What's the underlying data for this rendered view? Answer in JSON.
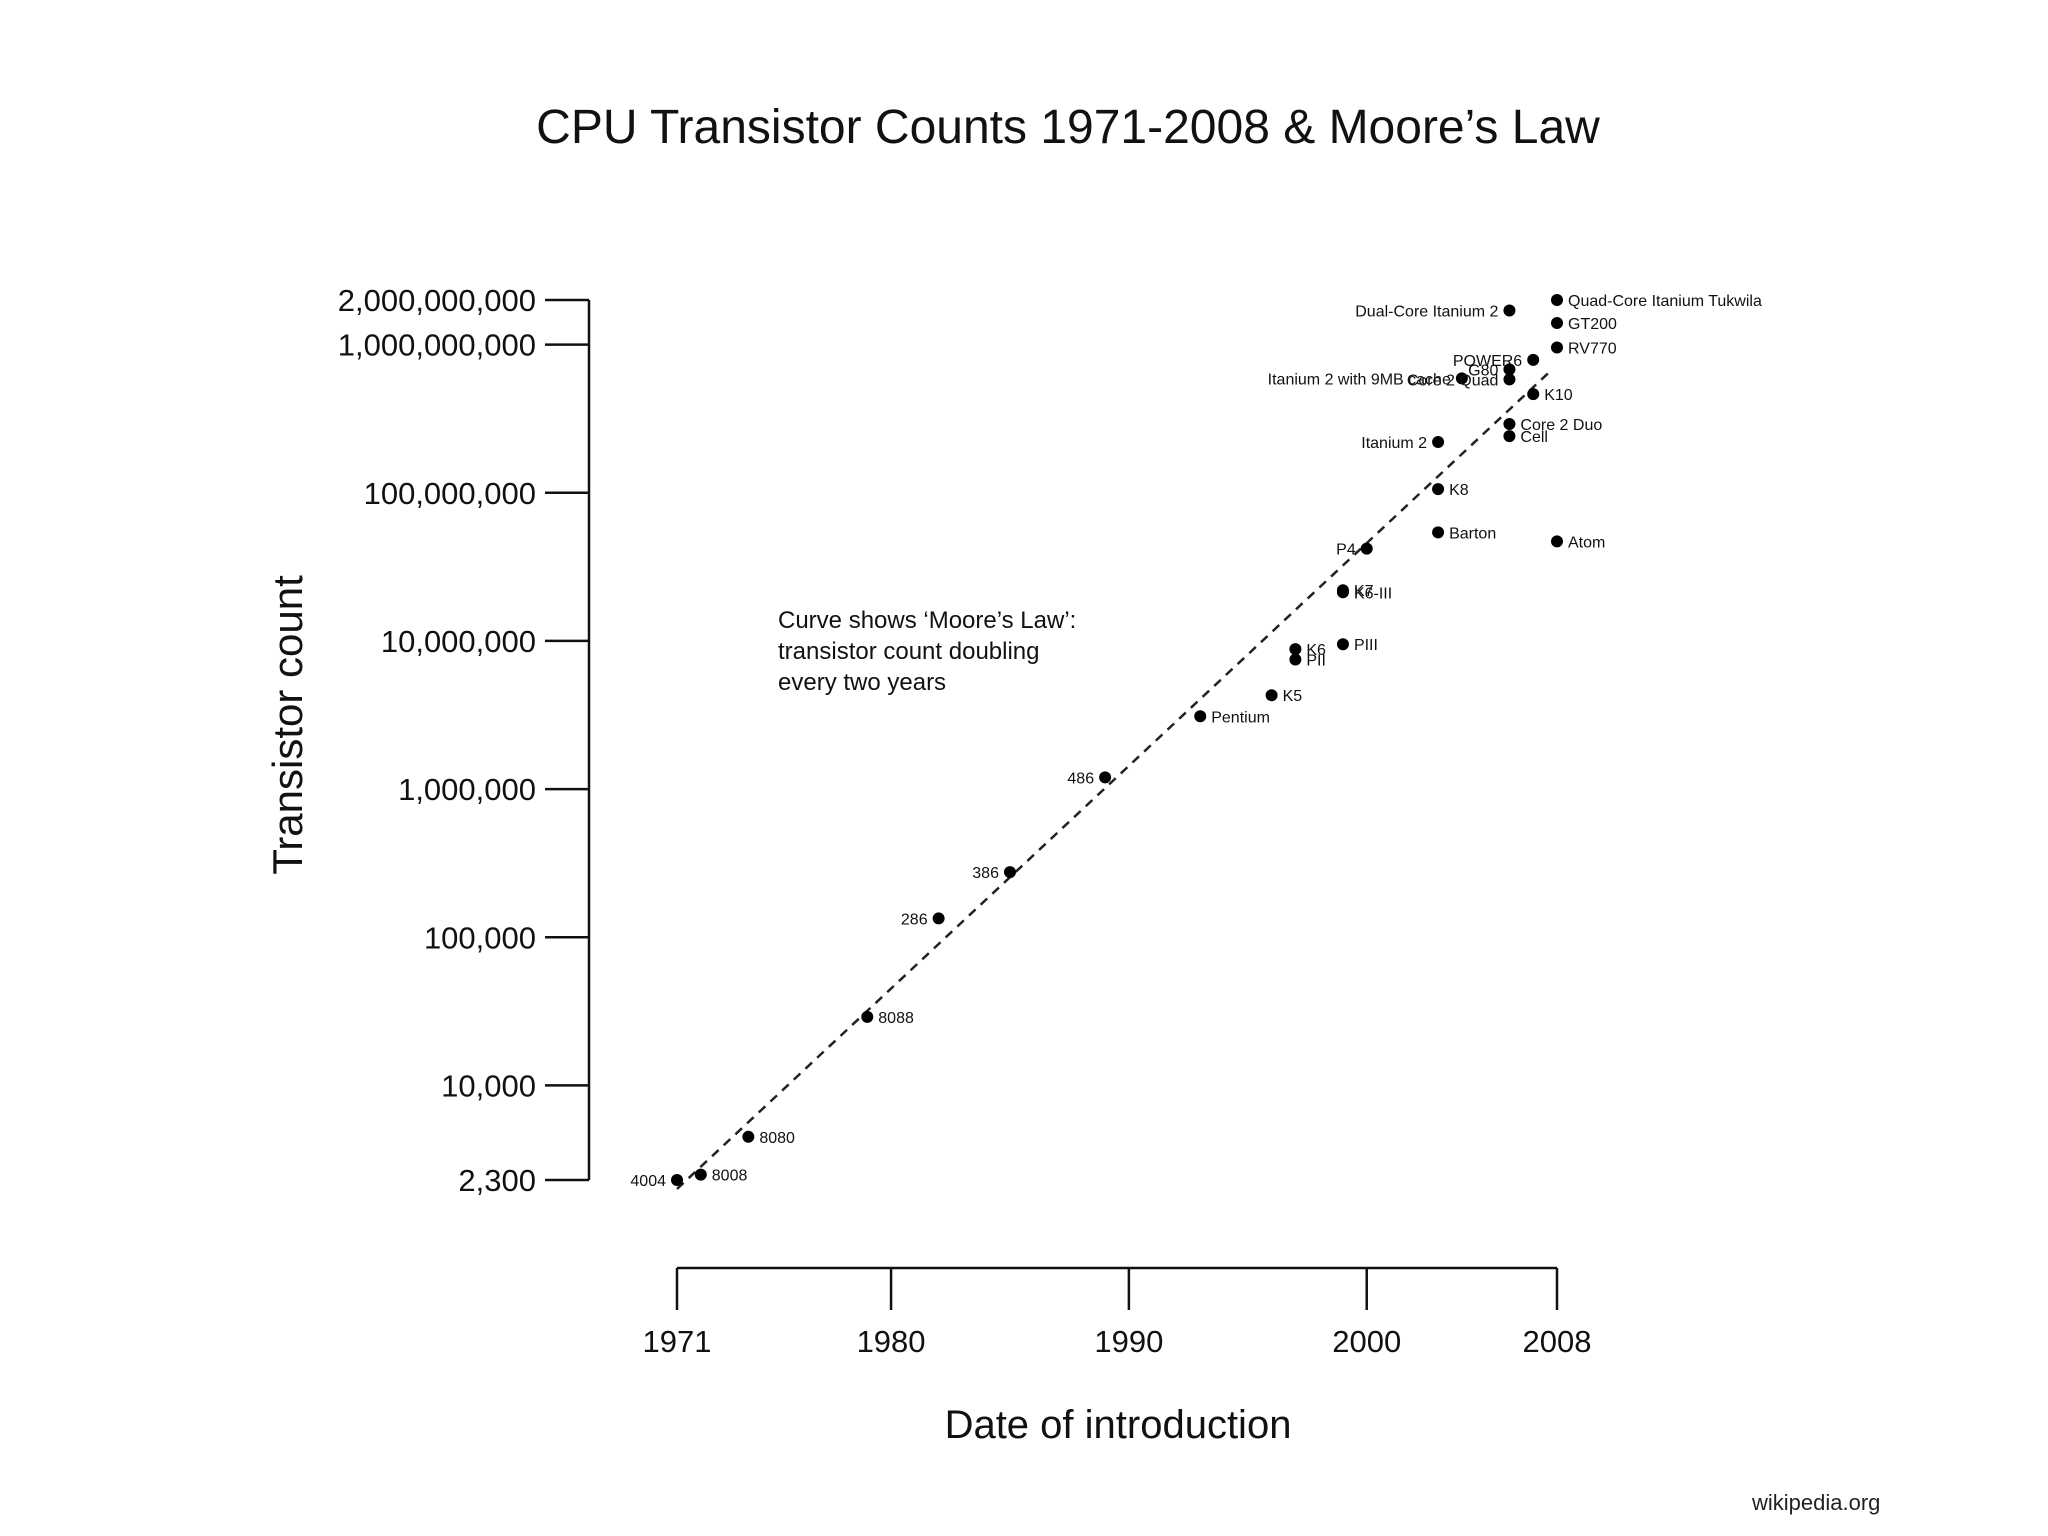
{
  "chart_data": {
    "type": "scatter",
    "title": "CPU Transistor Counts 1971-2008 & Moore’s Law",
    "xlabel": "Date of introduction",
    "ylabel": "Transistor count",
    "xlim": [
      1971,
      2008
    ],
    "ylim": [
      2300,
      2000000000
    ],
    "yscale": "log",
    "x_ticks": [
      {
        "value": 1971,
        "label": "1971"
      },
      {
        "value": 1980,
        "label": "1980"
      },
      {
        "value": 1990,
        "label": "1990"
      },
      {
        "value": 2000,
        "label": "2000"
      },
      {
        "value": 2008,
        "label": "2008"
      }
    ],
    "y_ticks": [
      {
        "value": 2000000000,
        "label": "2,000,000,000"
      },
      {
        "value": 1000000000,
        "label": "1,000,000,000"
      },
      {
        "value": 100000000,
        "label": "100,000,000"
      },
      {
        "value": 10000000,
        "label": "10,000,000"
      },
      {
        "value": 1000000,
        "label": "1,000,000"
      },
      {
        "value": 100000,
        "label": "100,000"
      },
      {
        "value": 10000,
        "label": "10,000"
      },
      {
        "value": 2300,
        "label": "2,300"
      }
    ],
    "trend_line": {
      "label": "Moore’s Law",
      "style": "dashed",
      "from": {
        "x": 1971,
        "y": 2000
      },
      "to": {
        "x": 2007.8,
        "y": 680000000
      }
    },
    "annotation": [
      "Curve shows ‘Moore’s Law’:",
      "transistor count doubling",
      "every two years"
    ],
    "points": [
      {
        "name": "4004",
        "x": 1971,
        "y": 2300,
        "label_side": "left"
      },
      {
        "name": "8008",
        "x": 1972,
        "y": 2500,
        "label_side": "right"
      },
      {
        "name": "8080",
        "x": 1974,
        "y": 4500,
        "label_side": "right"
      },
      {
        "name": "8088",
        "x": 1979,
        "y": 29000,
        "label_side": "right"
      },
      {
        "name": "286",
        "x": 1982,
        "y": 134000,
        "label_side": "left"
      },
      {
        "name": "386",
        "x": 1985,
        "y": 275000,
        "label_side": "left"
      },
      {
        "name": "486",
        "x": 1989,
        "y": 1200000,
        "label_side": "left"
      },
      {
        "name": "Pentium",
        "x": 1993,
        "y": 3100000,
        "label_side": "right"
      },
      {
        "name": "K5",
        "x": 1996,
        "y": 4300000,
        "label_side": "right"
      },
      {
        "name": "K6",
        "x": 1997,
        "y": 8800000,
        "label_side": "right"
      },
      {
        "name": "PII",
        "x": 1997,
        "y": 7500000,
        "label_side": "right"
      },
      {
        "name": "PIII",
        "x": 1999,
        "y": 9500000,
        "label_side": "right"
      },
      {
        "name": "K7",
        "x": 1999,
        "y": 22000000,
        "label_side": "right"
      },
      {
        "name": "K6-III",
        "x": 1999,
        "y": 21300000,
        "label_side": "right"
      },
      {
        "name": "P4",
        "x": 2000,
        "y": 42000000,
        "label_side": "left"
      },
      {
        "name": "Barton",
        "x": 2003,
        "y": 54000000,
        "label_side": "right"
      },
      {
        "name": "K8",
        "x": 2003,
        "y": 105900000,
        "label_side": "right"
      },
      {
        "name": "Itanium 2",
        "x": 2003,
        "y": 220000000,
        "label_side": "left"
      },
      {
        "name": "Itanium 2 with 9MB cache",
        "x": 2004,
        "y": 592000000,
        "label_side": "left"
      },
      {
        "name": "Cell",
        "x": 2006,
        "y": 241000000,
        "label_side": "right"
      },
      {
        "name": "Core 2 Duo",
        "x": 2006,
        "y": 291000000,
        "label_side": "right"
      },
      {
        "name": "Core 2 Quad",
        "x": 2006,
        "y": 582000000,
        "label_side": "left"
      },
      {
        "name": "G80",
        "x": 2006,
        "y": 681000000,
        "label_side": "left"
      },
      {
        "name": "Dual-Core Itanium 2",
        "x": 2006,
        "y": 1700000000,
        "label_side": "left"
      },
      {
        "name": "POWER6",
        "x": 2007,
        "y": 789000000,
        "label_side": "left"
      },
      {
        "name": "K10",
        "x": 2007,
        "y": 463000000,
        "label_side": "right"
      },
      {
        "name": "Atom",
        "x": 2008,
        "y": 47000000,
        "label_side": "right"
      },
      {
        "name": "RV770",
        "x": 2008,
        "y": 956000000,
        "label_side": "right"
      },
      {
        "name": "GT200",
        "x": 2008,
        "y": 1400000000,
        "label_side": "right"
      },
      {
        "name": "Quad-Core Itanium Tukwila",
        "x": 2008,
        "y": 2000000000,
        "label_side": "right"
      }
    ]
  },
  "source": "wikipedia.org"
}
